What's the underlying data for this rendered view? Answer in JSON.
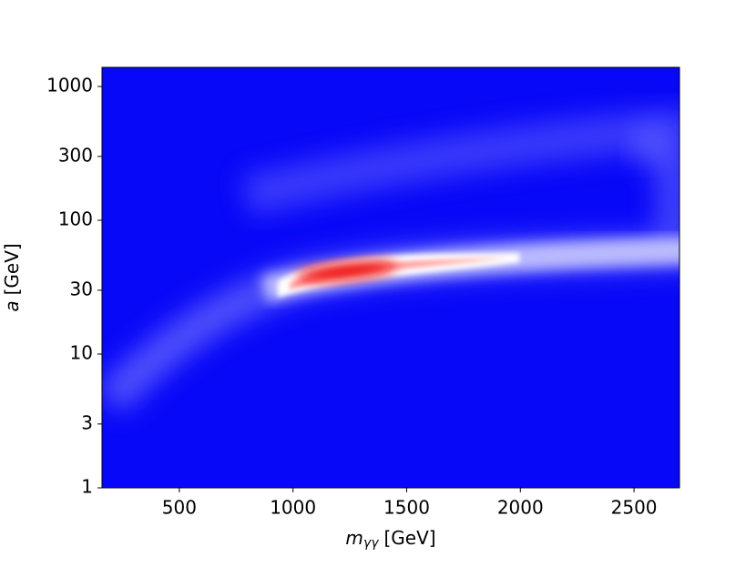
{
  "chart_data": {
    "type": "heatmap",
    "x_label": {
      "symbol": "m",
      "subscript": "γγ",
      "unit": "[GeV]"
    },
    "y_label": {
      "symbol": "a",
      "unit": "[GeV]"
    },
    "xlim": [
      160,
      2700
    ],
    "xticks": [
      500,
      1000,
      1500,
      2000,
      2500
    ],
    "ylim": [
      1,
      1390
    ],
    "yticks": [
      1,
      3,
      10,
      30,
      100,
      300,
      1000
    ],
    "y_scale": "log",
    "colormap": "bwr"
  }
}
